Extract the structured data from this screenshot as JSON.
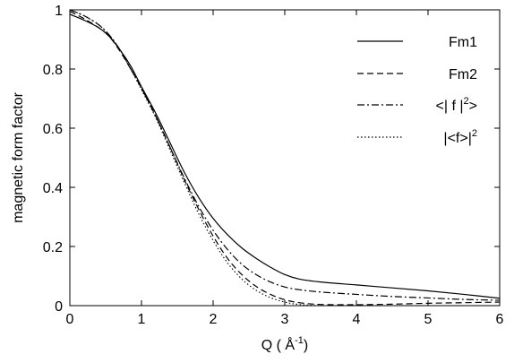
{
  "chart_data": {
    "type": "line",
    "title": "",
    "xlabel": {
      "prefix": "Q ( Å",
      "sup": "-1",
      "suffix": ")"
    },
    "ylabel": "magnetic form factor",
    "xlim": [
      0,
      6
    ],
    "ylim": [
      0,
      1
    ],
    "x_ticks": [
      "0",
      "1",
      "2",
      "3",
      "4",
      "5",
      "6"
    ],
    "y_ticks": [
      "0",
      "0.2",
      "0.4",
      "0.6",
      "0.8",
      "1"
    ],
    "grid": false,
    "legend_position": "top-right",
    "series": [
      {
        "name": "Fm1",
        "label": {
          "text": "Fm1"
        },
        "dash": "solid",
        "points": [
          [
            0,
            0.985
          ],
          [
            0.2,
            0.965
          ],
          [
            0.4,
            0.94
          ],
          [
            0.55,
            0.91
          ],
          [
            0.7,
            0.865
          ],
          [
            0.85,
            0.81
          ],
          [
            1.0,
            0.74
          ],
          [
            1.2,
            0.65
          ],
          [
            1.4,
            0.55
          ],
          [
            1.6,
            0.45
          ],
          [
            1.8,
            0.365
          ],
          [
            2.0,
            0.295
          ],
          [
            2.2,
            0.24
          ],
          [
            2.4,
            0.195
          ],
          [
            2.6,
            0.16
          ],
          [
            2.8,
            0.13
          ],
          [
            3.0,
            0.105
          ],
          [
            3.2,
            0.09
          ],
          [
            3.5,
            0.08
          ],
          [
            4.0,
            0.07
          ],
          [
            4.5,
            0.06
          ],
          [
            5.0,
            0.05
          ],
          [
            5.5,
            0.038
          ],
          [
            6.0,
            0.025
          ]
        ]
      },
      {
        "name": "Fm2",
        "label": {
          "text": "Fm2"
        },
        "dash": "dashed",
        "points": [
          [
            0,
            0.995
          ],
          [
            0.2,
            0.97
          ],
          [
            0.4,
            0.94
          ],
          [
            0.55,
            0.91
          ],
          [
            0.7,
            0.86
          ],
          [
            0.85,
            0.8
          ],
          [
            1.0,
            0.735
          ],
          [
            1.2,
            0.64
          ],
          [
            1.4,
            0.535
          ],
          [
            1.6,
            0.425
          ],
          [
            1.8,
            0.325
          ],
          [
            2.0,
            0.235
          ],
          [
            2.2,
            0.16
          ],
          [
            2.4,
            0.105
          ],
          [
            2.6,
            0.065
          ],
          [
            2.8,
            0.038
          ],
          [
            3.0,
            0.02
          ],
          [
            3.2,
            0.01
          ],
          [
            3.5,
            0.004
          ],
          [
            4.0,
            0.003
          ],
          [
            4.5,
            0.005
          ],
          [
            5.0,
            0.008
          ],
          [
            5.5,
            0.01
          ],
          [
            6.0,
            0.012
          ]
        ]
      },
      {
        "name": "<| f |2>",
        "label": {
          "prefix": "<| f |",
          "sup": "2",
          "suffix": ">"
        },
        "dash": "dashdot",
        "points": [
          [
            0,
            1.0
          ],
          [
            0.2,
            0.98
          ],
          [
            0.4,
            0.95
          ],
          [
            0.55,
            0.915
          ],
          [
            0.7,
            0.865
          ],
          [
            0.85,
            0.8
          ],
          [
            1.0,
            0.735
          ],
          [
            1.2,
            0.64
          ],
          [
            1.4,
            0.535
          ],
          [
            1.6,
            0.43
          ],
          [
            1.8,
            0.335
          ],
          [
            2.0,
            0.255
          ],
          [
            2.2,
            0.19
          ],
          [
            2.4,
            0.14
          ],
          [
            2.6,
            0.105
          ],
          [
            2.8,
            0.08
          ],
          [
            3.0,
            0.063
          ],
          [
            3.2,
            0.054
          ],
          [
            3.5,
            0.046
          ],
          [
            4.0,
            0.038
          ],
          [
            4.5,
            0.031
          ],
          [
            5.0,
            0.026
          ],
          [
            5.5,
            0.021
          ],
          [
            6.0,
            0.018
          ]
        ]
      },
      {
        "name": "|<f>|2",
        "label": {
          "prefix": "|<f>|",
          "sup": "2",
          "suffix": ""
        },
        "dash": "dotted",
        "points": [
          [
            0,
            1.0
          ],
          [
            0.2,
            0.98
          ],
          [
            0.4,
            0.95
          ],
          [
            0.55,
            0.915
          ],
          [
            0.7,
            0.865
          ],
          [
            0.85,
            0.8
          ],
          [
            1.0,
            0.73
          ],
          [
            1.2,
            0.635
          ],
          [
            1.4,
            0.525
          ],
          [
            1.6,
            0.415
          ],
          [
            1.8,
            0.31
          ],
          [
            2.0,
            0.22
          ],
          [
            2.2,
            0.145
          ],
          [
            2.4,
            0.09
          ],
          [
            2.6,
            0.052
          ],
          [
            2.8,
            0.027
          ],
          [
            3.0,
            0.012
          ],
          [
            3.2,
            0.004
          ],
          [
            3.5,
            0.0
          ],
          [
            4.0,
            0.0
          ],
          [
            4.5,
            0.0
          ],
          [
            5.0,
            0.0
          ],
          [
            5.5,
            0.0
          ],
          [
            6.0,
            0.0
          ]
        ]
      }
    ]
  }
}
